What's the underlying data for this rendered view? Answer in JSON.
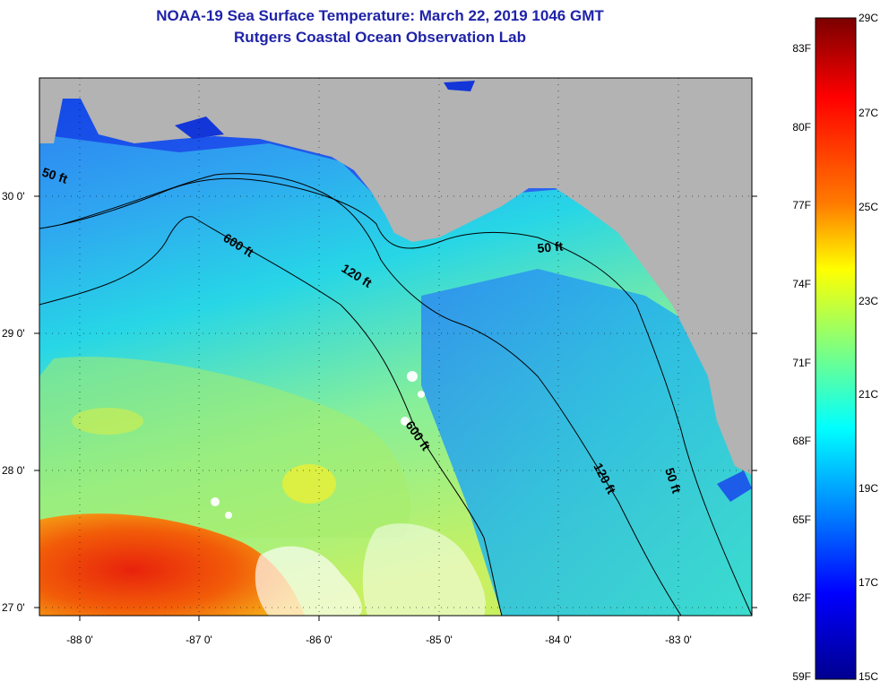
{
  "header": {
    "title": "NOAA-19 Sea Surface Temperature:  March 22, 2019 1046 GMT",
    "subtitle": "Rutgers Coastal Ocean Observation Lab"
  },
  "map": {
    "longitude_ticks": [
      "-88 0'",
      "-87 0'",
      "-86 0'",
      "-85 0'",
      "-84 0'",
      "-83 0'"
    ],
    "latitude_ticks": [
      "30 0'",
      "29 0'",
      "28 0'",
      "27 0'"
    ],
    "contour_labels": [
      "50 ft",
      "600 ft",
      "120 ft",
      "50 ft",
      "600 ft",
      "120 ft",
      "50 ft"
    ],
    "land_color": "#b3b3b3"
  },
  "colorbar": {
    "fahrenheit_labels": [
      "83F",
      "80F",
      "77F",
      "74F",
      "71F",
      "68F",
      "65F",
      "62F",
      "59F"
    ],
    "celsius_labels": [
      "29C",
      "27C",
      "25C",
      "23C",
      "21C",
      "19C",
      "17C",
      "15C"
    ],
    "stops": [
      "#7a0000",
      "#ff0000",
      "#ff7a00",
      "#ffff00",
      "#7fff7f",
      "#00ffff",
      "#007fff",
      "#0000ff",
      "#00008f"
    ]
  }
}
